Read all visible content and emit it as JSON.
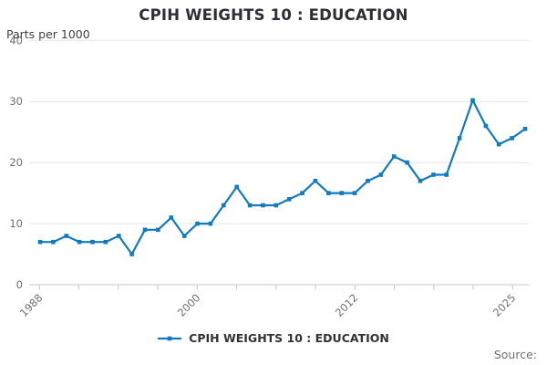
{
  "title": "CPIH WEIGHTS 10 : EDUCATION",
  "y_axis_units": "Parts per 1000",
  "legend": {
    "label": "CPIH WEIGHTS 10 : EDUCATION"
  },
  "source_label": "Source:",
  "colors": {
    "line": "#127bbf",
    "grid": "#e6e6e6",
    "axis": "#bcc9d4",
    "tick_text": "#6f6f6f",
    "title_text": "#2e2e36"
  },
  "chart_data": {
    "type": "line",
    "title": "CPIH WEIGHTS 10 : EDUCATION",
    "ylabel": "Parts per 1000",
    "ylim": [
      0,
      40
    ],
    "yticks": [
      0,
      10,
      20,
      30,
      40
    ],
    "grid": true,
    "legend_position": "bottom",
    "x": [
      1988,
      1989,
      1990,
      1991,
      1992,
      1993,
      1994,
      1995,
      1996,
      1997,
      1998,
      1999,
      2000,
      2001,
      2002,
      2003,
      2004,
      2005,
      2006,
      2007,
      2008,
      2009,
      2010,
      2011,
      2012,
      2013,
      2014,
      2015,
      2016,
      2017,
      2018,
      2019,
      2020,
      2021,
      2022,
      2023,
      2024,
      2025
    ],
    "xtick_labels": [
      "1988",
      "",
      "",
      "",
      "2000",
      "",
      "",
      "",
      "2012",
      "",
      "",
      "",
      "2025"
    ],
    "series": [
      {
        "name": "CPIH WEIGHTS 10 : EDUCATION",
        "values": [
          7,
          7,
          8,
          7,
          7,
          7,
          8,
          5,
          9,
          9,
          11,
          8,
          10,
          10,
          13,
          16,
          13,
          13,
          13,
          14,
          15,
          17,
          15,
          15,
          15,
          17,
          18,
          21,
          20,
          17,
          18,
          18,
          24,
          30.2,
          26,
          23,
          24,
          25.5
        ]
      }
    ]
  }
}
